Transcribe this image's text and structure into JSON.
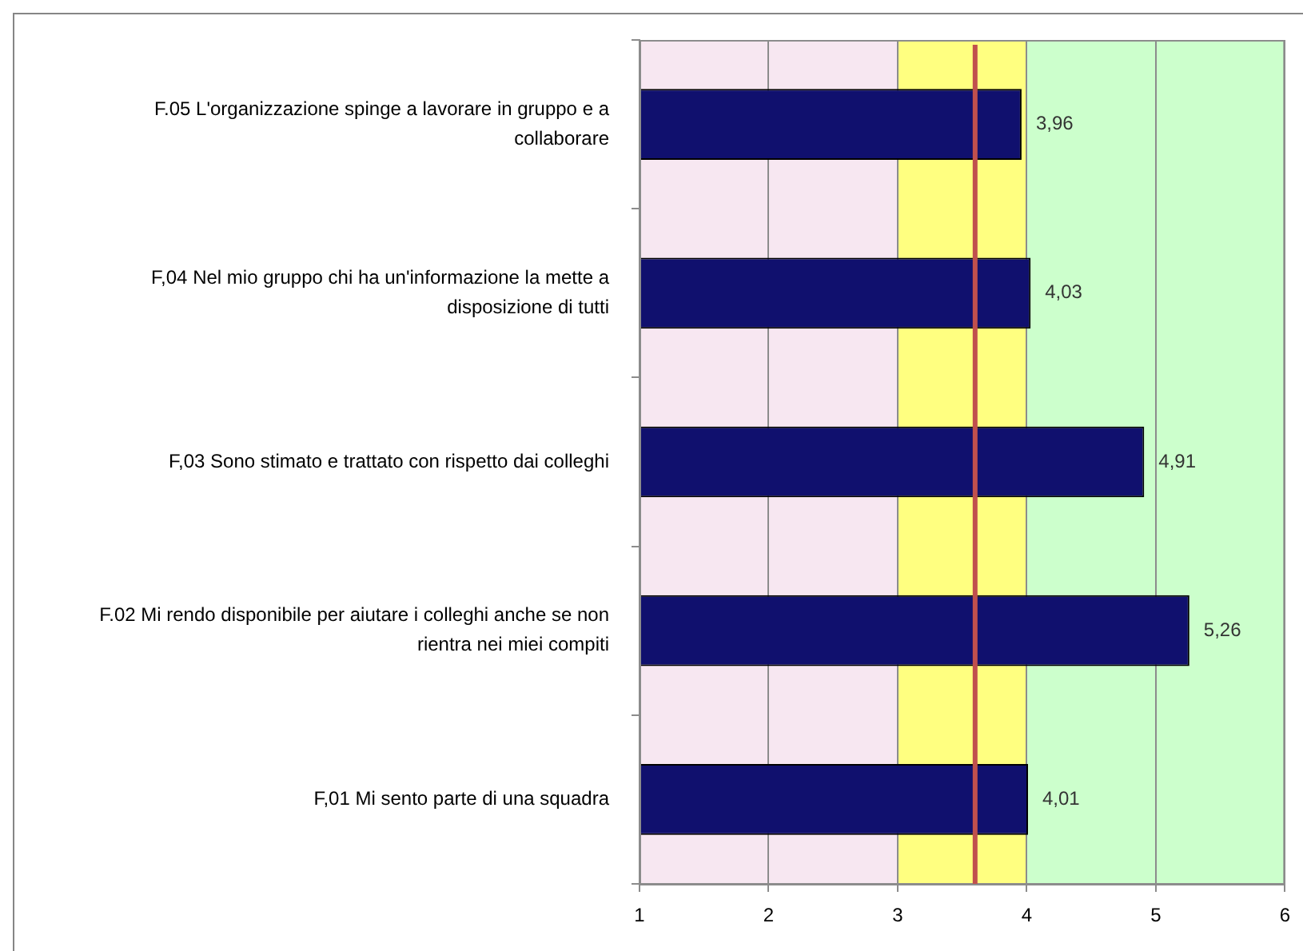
{
  "chart_data": {
    "type": "bar",
    "orientation": "horizontal",
    "categories": [
      "F.05 L'organizzazione spinge a lavorare in gruppo e a collaborare",
      "F,04 Nel mio gruppo chi ha un'informazione la mette a disposizione di tutti",
      "F,03 Sono stimato e trattato con rispetto dai colleghi",
      "F.02 Mi rendo disponibile per aiutare i colleghi anche se non rientra nei miei compiti",
      "F,01 Mi sento parte di una squadra"
    ],
    "values": [
      3.96,
      4.03,
      4.91,
      5.26,
      4.01
    ],
    "value_labels": [
      "3,96",
      "4,03",
      "4,91",
      "5,26",
      "4,01"
    ],
    "color": "#10106e",
    "xlim": [
      1,
      6
    ],
    "xticks": [
      1,
      2,
      3,
      4,
      5,
      6
    ],
    "grid": "x",
    "bands": [
      {
        "axis": "x",
        "from": 1,
        "to": 3,
        "color": "#f7e7f1"
      },
      {
        "axis": "x",
        "from": 3,
        "to": 4,
        "color": "#ffff80"
      },
      {
        "axis": "x",
        "from": 4,
        "to": 6,
        "color": "#ccffcc"
      }
    ],
    "ref_lines": [
      {
        "axis": "x",
        "value": 3.6,
        "color": "#c0504d"
      }
    ]
  }
}
